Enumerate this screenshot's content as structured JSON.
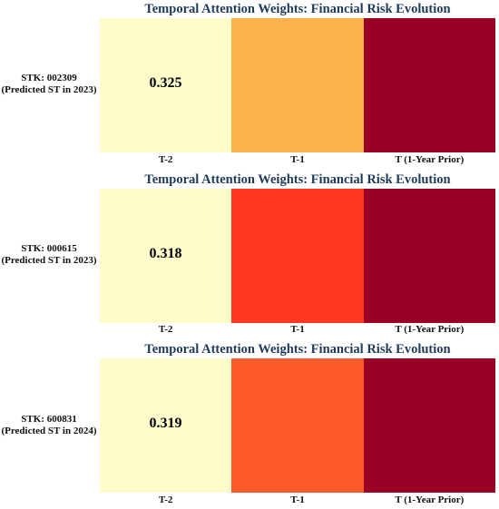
{
  "chart_data": [
    {
      "type": "heatmap",
      "title": "Temporal Attention Weights: Financial Risk Evolution",
      "row_label": [
        "STK: 002309",
        "(Predicted ST in 2023)"
      ],
      "categories": [
        "T-2",
        "T-1",
        "T (1-Year Prior)"
      ],
      "values": [
        0.325,
        null,
        null
      ],
      "annotation": "0.325",
      "cell_colors": [
        "#fefcca",
        "#fdb14a",
        "#990023"
      ]
    },
    {
      "type": "heatmap",
      "title": "Temporal Attention Weights: Financial Risk Evolution",
      "row_label": [
        "STK: 000615",
        "(Predicted ST in 2023)"
      ],
      "categories": [
        "T-2",
        "T-1",
        "T (1-Year Prior)"
      ],
      "values": [
        0.318,
        null,
        null
      ],
      "annotation": "0.318",
      "cell_colors": [
        "#fefcca",
        "#fd3722",
        "#990023"
      ]
    },
    {
      "type": "heatmap",
      "title": "Temporal Attention Weights: Financial Risk Evolution",
      "row_label": [
        "STK: 600831",
        "(Predicted ST in 2024)"
      ],
      "categories": [
        "T-2",
        "T-1",
        "T (1-Year Prior)"
      ],
      "values": [
        0.319,
        null,
        null
      ],
      "annotation": "0.319",
      "cell_colors": [
        "#fefcca",
        "#fc5a2a",
        "#990023"
      ]
    }
  ]
}
